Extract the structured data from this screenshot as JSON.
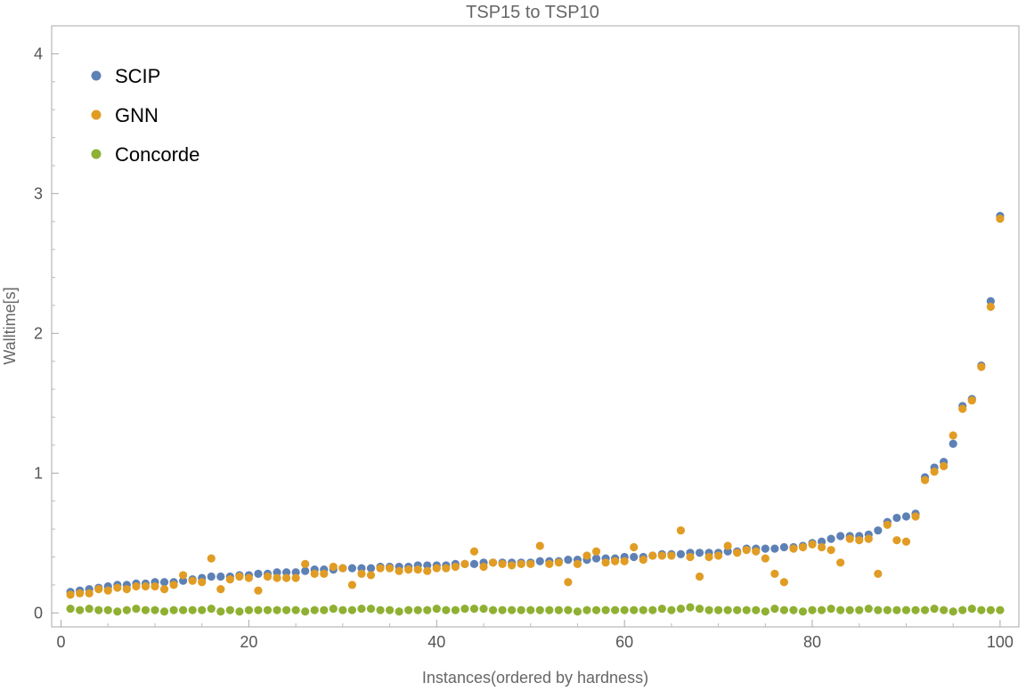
{
  "chart_data": {
    "type": "scatter",
    "title": "TSP15 to TSP10",
    "xlabel": "Instances(ordered by hardness)",
    "ylabel": "Walltime[s]",
    "xlim": [
      -1,
      102
    ],
    "ylim": [
      -0.1,
      4.2
    ],
    "xticks": [
      0,
      20,
      40,
      60,
      80,
      100
    ],
    "yticks": [
      0,
      1,
      2,
      3,
      4
    ],
    "grid": false,
    "legend_position": "top-left",
    "x": [
      1,
      2,
      3,
      4,
      5,
      6,
      7,
      8,
      9,
      10,
      11,
      12,
      13,
      14,
      15,
      16,
      17,
      18,
      19,
      20,
      21,
      22,
      23,
      24,
      25,
      26,
      27,
      28,
      29,
      30,
      31,
      32,
      33,
      34,
      35,
      36,
      37,
      38,
      39,
      40,
      41,
      42,
      43,
      44,
      45,
      46,
      47,
      48,
      49,
      50,
      51,
      52,
      53,
      54,
      55,
      56,
      57,
      58,
      59,
      60,
      61,
      62,
      63,
      64,
      65,
      66,
      67,
      68,
      69,
      70,
      71,
      72,
      73,
      74,
      75,
      76,
      77,
      78,
      79,
      80,
      81,
      82,
      83,
      84,
      85,
      86,
      87,
      88,
      89,
      90,
      91,
      92,
      93,
      94,
      95,
      96,
      97,
      98,
      99,
      100
    ],
    "series": [
      {
        "name": "SCIP",
        "color": "#5e81b5",
        "values": [
          0.15,
          0.16,
          0.17,
          0.18,
          0.19,
          0.2,
          0.2,
          0.21,
          0.21,
          0.22,
          0.22,
          0.22,
          0.23,
          0.24,
          0.25,
          0.26,
          0.26,
          0.26,
          0.27,
          0.27,
          0.28,
          0.28,
          0.29,
          0.29,
          0.29,
          0.3,
          0.31,
          0.31,
          0.31,
          0.32,
          0.32,
          0.32,
          0.32,
          0.33,
          0.33,
          0.33,
          0.33,
          0.34,
          0.34,
          0.34,
          0.34,
          0.35,
          0.35,
          0.35,
          0.36,
          0.36,
          0.36,
          0.36,
          0.36,
          0.36,
          0.37,
          0.37,
          0.37,
          0.38,
          0.38,
          0.38,
          0.39,
          0.39,
          0.39,
          0.4,
          0.4,
          0.4,
          0.41,
          0.42,
          0.42,
          0.42,
          0.43,
          0.43,
          0.43,
          0.43,
          0.44,
          0.44,
          0.46,
          0.46,
          0.46,
          0.46,
          0.47,
          0.47,
          0.48,
          0.5,
          0.51,
          0.53,
          0.55,
          0.55,
          0.55,
          0.56,
          0.59,
          0.65,
          0.68,
          0.69,
          0.71,
          0.97,
          1.04,
          1.08,
          1.21,
          1.48,
          1.53,
          1.77,
          2.23,
          2.84
        ]
      },
      {
        "name": "GNN",
        "color": "#e19c24",
        "values": [
          0.13,
          0.14,
          0.14,
          0.17,
          0.16,
          0.18,
          0.17,
          0.19,
          0.19,
          0.19,
          0.17,
          0.2,
          0.27,
          0.23,
          0.22,
          0.39,
          0.17,
          0.24,
          0.26,
          0.25,
          0.16,
          0.26,
          0.25,
          0.25,
          0.25,
          0.35,
          0.28,
          0.28,
          0.33,
          0.32,
          0.2,
          0.28,
          0.27,
          0.32,
          0.32,
          0.3,
          0.31,
          0.31,
          0.3,
          0.32,
          0.32,
          0.33,
          0.35,
          0.44,
          0.33,
          0.36,
          0.35,
          0.34,
          0.35,
          0.35,
          0.48,
          0.35,
          0.36,
          0.22,
          0.35,
          0.41,
          0.44,
          0.36,
          0.37,
          0.37,
          0.47,
          0.38,
          0.41,
          0.41,
          0.41,
          0.59,
          0.4,
          0.26,
          0.4,
          0.41,
          0.48,
          0.43,
          0.45,
          0.44,
          0.39,
          0.28,
          0.22,
          0.46,
          0.47,
          0.49,
          0.47,
          0.45,
          0.36,
          0.53,
          0.52,
          0.53,
          0.28,
          0.63,
          0.52,
          0.51,
          0.69,
          0.95,
          1.01,
          1.05,
          1.27,
          1.46,
          1.52,
          1.76,
          2.19,
          2.82
        ]
      },
      {
        "name": "Concorde",
        "color": "#8fb032",
        "values": [
          0.03,
          0.02,
          0.03,
          0.02,
          0.02,
          0.01,
          0.02,
          0.03,
          0.02,
          0.02,
          0.01,
          0.02,
          0.02,
          0.02,
          0.02,
          0.03,
          0.01,
          0.02,
          0.01,
          0.02,
          0.02,
          0.02,
          0.02,
          0.02,
          0.02,
          0.01,
          0.02,
          0.02,
          0.03,
          0.02,
          0.02,
          0.03,
          0.03,
          0.02,
          0.02,
          0.01,
          0.02,
          0.02,
          0.02,
          0.03,
          0.02,
          0.02,
          0.03,
          0.03,
          0.03,
          0.02,
          0.02,
          0.02,
          0.02,
          0.02,
          0.02,
          0.02,
          0.02,
          0.02,
          0.01,
          0.02,
          0.02,
          0.02,
          0.02,
          0.02,
          0.02,
          0.02,
          0.02,
          0.03,
          0.02,
          0.03,
          0.04,
          0.03,
          0.02,
          0.02,
          0.02,
          0.02,
          0.02,
          0.02,
          0.01,
          0.03,
          0.02,
          0.02,
          0.01,
          0.02,
          0.02,
          0.03,
          0.02,
          0.02,
          0.02,
          0.03,
          0.02,
          0.02,
          0.02,
          0.02,
          0.02,
          0.02,
          0.03,
          0.02,
          0.01,
          0.02,
          0.03,
          0.02,
          0.02,
          0.02
        ]
      }
    ]
  }
}
